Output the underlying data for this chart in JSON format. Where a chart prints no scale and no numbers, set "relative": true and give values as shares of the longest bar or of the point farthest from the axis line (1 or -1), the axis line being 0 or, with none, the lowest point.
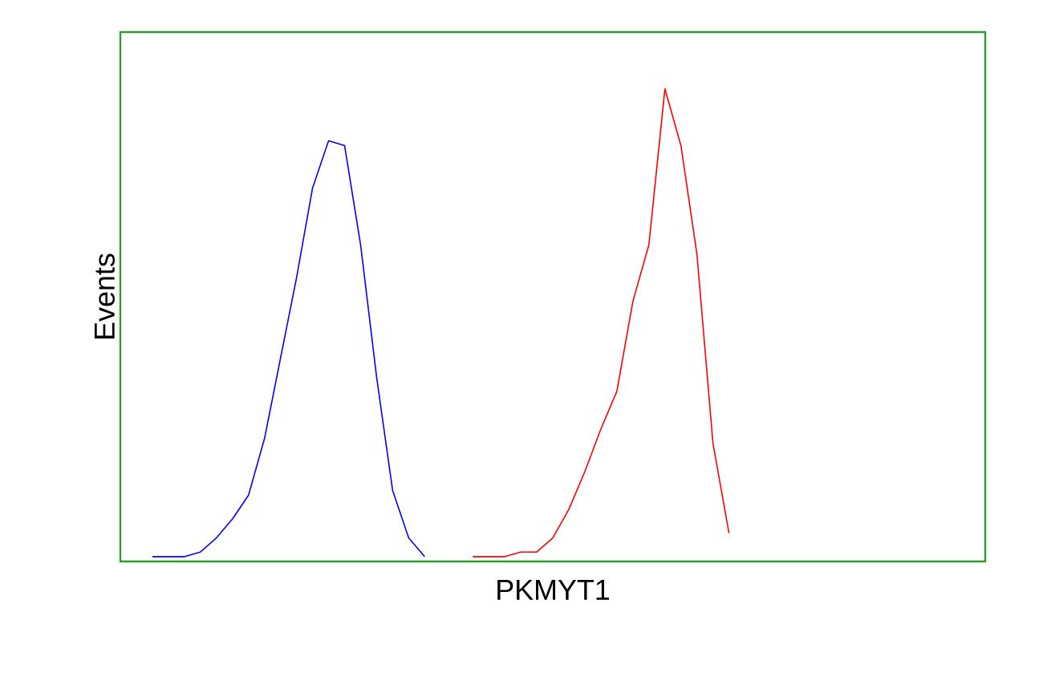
{
  "chart_data": {
    "type": "line",
    "xlabel": "PKMYT1",
    "ylabel": "Events",
    "relative": true,
    "marker": "none",
    "line_style": "solid",
    "categories": [
      null,
      null,
      null,
      null,
      null,
      null,
      null,
      null,
      null,
      null,
      null,
      null,
      null,
      null,
      null,
      null,
      null,
      null,
      null,
      null,
      null,
      null,
      null,
      null,
      null,
      null,
      null,
      null,
      null,
      null,
      null,
      null,
      null,
      null,
      null,
      null,
      null,
      null,
      null,
      null,
      null,
      null,
      null,
      null,
      null,
      null,
      null,
      null,
      null,
      null,
      null,
      null,
      null,
      null,
      null
    ],
    "series": [
      {
        "color": "#0000ff",
        "values": [
          null,
          null,
          0.01,
          0.01,
          0.01,
          0.02,
          0.05,
          0.09,
          0.14,
          0.26,
          0.43,
          0.6,
          0.79,
          0.89,
          0.88,
          0.67,
          0.39,
          0.15,
          0.05,
          0.01,
          null,
          null,
          null,
          null,
          null,
          null,
          null,
          null,
          null,
          null,
          null,
          null,
          null,
          null,
          null,
          null,
          null,
          null,
          null,
          null,
          null,
          null,
          null,
          null,
          null,
          null,
          null,
          null,
          null,
          null,
          null,
          null,
          null,
          null,
          null
        ]
      },
      {
        "color": "#ff0000",
        "values": [
          null,
          null,
          null,
          null,
          null,
          null,
          null,
          null,
          null,
          null,
          null,
          null,
          null,
          null,
          null,
          null,
          null,
          null,
          null,
          null,
          null,
          null,
          0.01,
          0.01,
          0.01,
          0.02,
          0.02,
          0.05,
          0.11,
          0.19,
          0.28,
          0.36,
          0.55,
          0.67,
          1,
          0.88,
          0.65,
          0.25,
          0.06,
          null,
          null,
          null,
          null,
          null,
          null,
          null,
          null,
          null,
          null,
          null,
          null,
          null,
          null,
          null,
          null
        ]
      }
    ]
  }
}
